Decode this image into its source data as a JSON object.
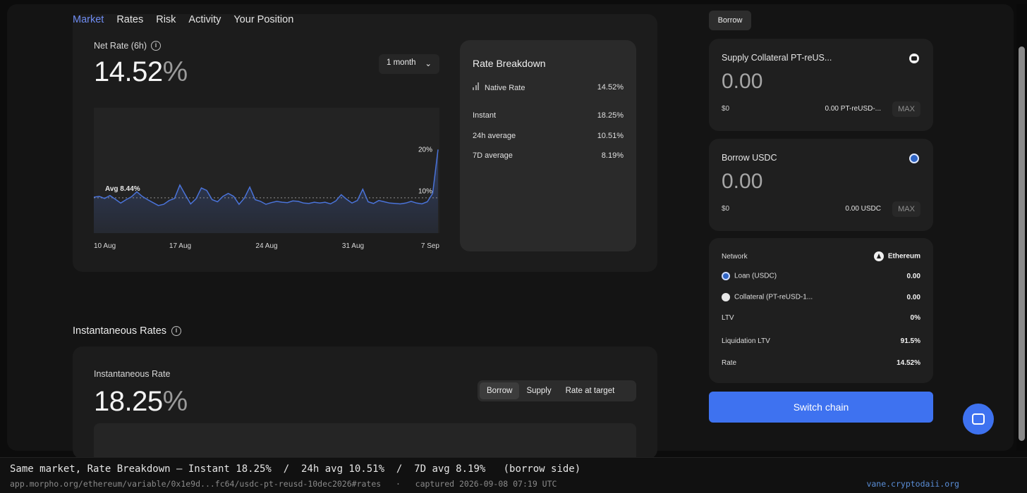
{
  "nav": {
    "tabs": [
      "Market",
      "Rates",
      "Risk",
      "Activity",
      "Your Position"
    ],
    "active": "Market"
  },
  "net_rate": {
    "label": "Net Rate (6h)",
    "value": "14.52",
    "unit": "%",
    "period": "1 month"
  },
  "chart_data": {
    "type": "area",
    "x_tick_labels": [
      "10 Aug",
      "17 Aug",
      "24 Aug",
      "31 Aug",
      "7 Sep"
    ],
    "y_tick_labels": [
      "20%",
      "10%"
    ],
    "ylim": [
      0,
      30
    ],
    "annotations": [
      "Avg 8.44%"
    ],
    "average": 8.44,
    "series": [
      {
        "color": "#4a73d9",
        "values": [
          8.6,
          8.8,
          8.3,
          9.0,
          8.1,
          7.2,
          8.0,
          8.7,
          9.9,
          8.8,
          8.0,
          7.3,
          6.6,
          6.9,
          7.8,
          8.3,
          11.5,
          9.2,
          7.0,
          8.2,
          10.8,
          10.2,
          8.0,
          7.5,
          8.8,
          9.5,
          8.8,
          6.9,
          8.4,
          11.0,
          8.0,
          7.6,
          6.9,
          7.3,
          7.6,
          7.4,
          7.3,
          7.7,
          7.6,
          7.2,
          7.1,
          7.4,
          7.2,
          7.4,
          7.0,
          7.7,
          9.2,
          8.1,
          7.2,
          7.8,
          10.5,
          7.5,
          7.1,
          7.8,
          7.5,
          7.2,
          7.1,
          7.0,
          7.2,
          7.6,
          7.2,
          7.0,
          7.5,
          9.5,
          20.0
        ]
      }
    ],
    "grid": false
  },
  "breakdown": {
    "title": "Rate Breakdown",
    "native_label": "Native Rate",
    "native_value": "14.52%",
    "rows": [
      {
        "label": "Instant",
        "value": "18.25%"
      },
      {
        "label": "24h average",
        "value": "10.51%"
      },
      {
        "label": "7D average",
        "value": "8.19%"
      }
    ]
  },
  "instantaneous": {
    "section_title": "Instantaneous Rates",
    "label": "Instantaneous Rate",
    "value": "18.25",
    "unit": "%",
    "toggle": [
      "Borrow",
      "Supply",
      "Rate at target"
    ],
    "toggle_active": "Borrow"
  },
  "borrow_panel": {
    "tab": "Borrow",
    "supply": {
      "title": "Supply Collateral PT-reUS...",
      "amount": "0.00",
      "usd": "$0",
      "balance": "0.00 PT-reUSD-...",
      "max": "MAX",
      "icon": "pt-token-icon"
    },
    "borrow": {
      "title": "Borrow USDC",
      "amount": "0.00",
      "usd": "$0",
      "balance": "0.00 USDC",
      "max": "MAX",
      "icon": "usdc-icon"
    },
    "summary": {
      "network_label": "Network",
      "network_value": "Ethereum",
      "loan_label": "Loan (USDC)",
      "loan_value": "0.00",
      "collateral_label": "Collateral (PT-reUSD-1...",
      "collateral_value": "0.00",
      "ltv_label": "LTV",
      "ltv_value": "0%",
      "liq_label": "Liquidation LTV",
      "liq_value": "91.5%",
      "rate_label": "Rate",
      "rate_value": "14.52%"
    },
    "action": "Switch chain"
  },
  "caption": {
    "main": "Same market, Rate Breakdown — Instant 18.25%  /  24h avg 10.51%  /  7D avg 8.19%   (borrow side)",
    "url": "app.morpho.org/ethereum/variable/0x1e9d...fc64/usdc-pt-reusd-10dec2026#rates   ·   captured 2026-09-08 07:19 UTC",
    "site": "vane.cryptodaii.org"
  },
  "colors": {
    "accent": "#3e72f0",
    "active_tab": "#6e8bf0",
    "line": "#4a73d9"
  }
}
